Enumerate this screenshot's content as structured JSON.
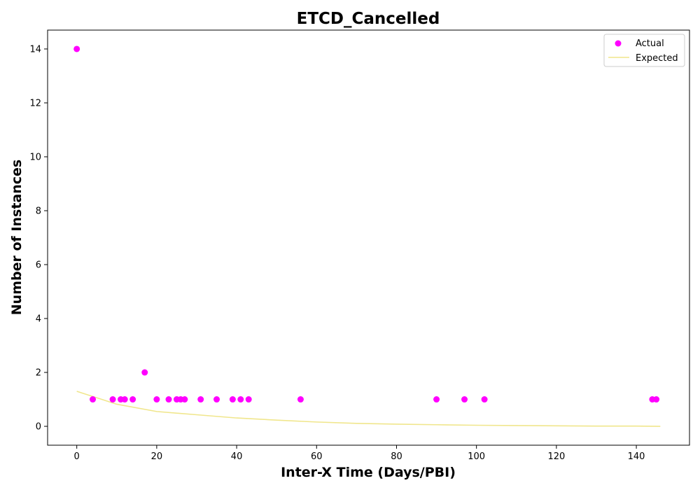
{
  "chart_data": {
    "type": "scatter",
    "title": "ETCD_Cancelled",
    "xlabel": "Inter-X Time (Days/PBI)",
    "ylabel": "Number of Instances",
    "xlim": [
      -7.3,
      153.3
    ],
    "ylim": [
      -0.7,
      14.7
    ],
    "xticks": [
      0,
      20,
      40,
      60,
      80,
      100,
      120,
      140
    ],
    "yticks": [
      0,
      2,
      4,
      6,
      8,
      10,
      12,
      14
    ],
    "grid": false,
    "legend_position": "upper-right",
    "series": [
      {
        "name": "Actual",
        "kind": "scatter",
        "color": "#ff00ff",
        "points": [
          [
            0,
            14
          ],
          [
            4,
            1
          ],
          [
            9,
            1
          ],
          [
            11,
            1
          ],
          [
            12,
            1
          ],
          [
            14,
            1
          ],
          [
            17,
            2
          ],
          [
            20,
            1
          ],
          [
            23,
            1
          ],
          [
            25,
            1
          ],
          [
            26,
            1
          ],
          [
            27,
            1
          ],
          [
            31,
            1
          ],
          [
            35,
            1
          ],
          [
            39,
            1
          ],
          [
            41,
            1
          ],
          [
            43,
            1
          ],
          [
            56,
            1
          ],
          [
            90,
            1
          ],
          [
            97,
            1
          ],
          [
            102,
            1
          ],
          [
            144,
            1
          ],
          [
            145,
            1
          ]
        ]
      },
      {
        "name": "Expected",
        "kind": "line",
        "color": "#f0e68c",
        "x": [
          0,
          10,
          20,
          30,
          40,
          50,
          60,
          70,
          80,
          90,
          100,
          110,
          120,
          130,
          140,
          146
        ],
        "y": [
          1.3,
          0.82,
          0.55,
          0.43,
          0.31,
          0.23,
          0.16,
          0.11,
          0.08,
          0.06,
          0.04,
          0.03,
          0.02,
          0.01,
          0.01,
          0.0
        ]
      }
    ]
  }
}
